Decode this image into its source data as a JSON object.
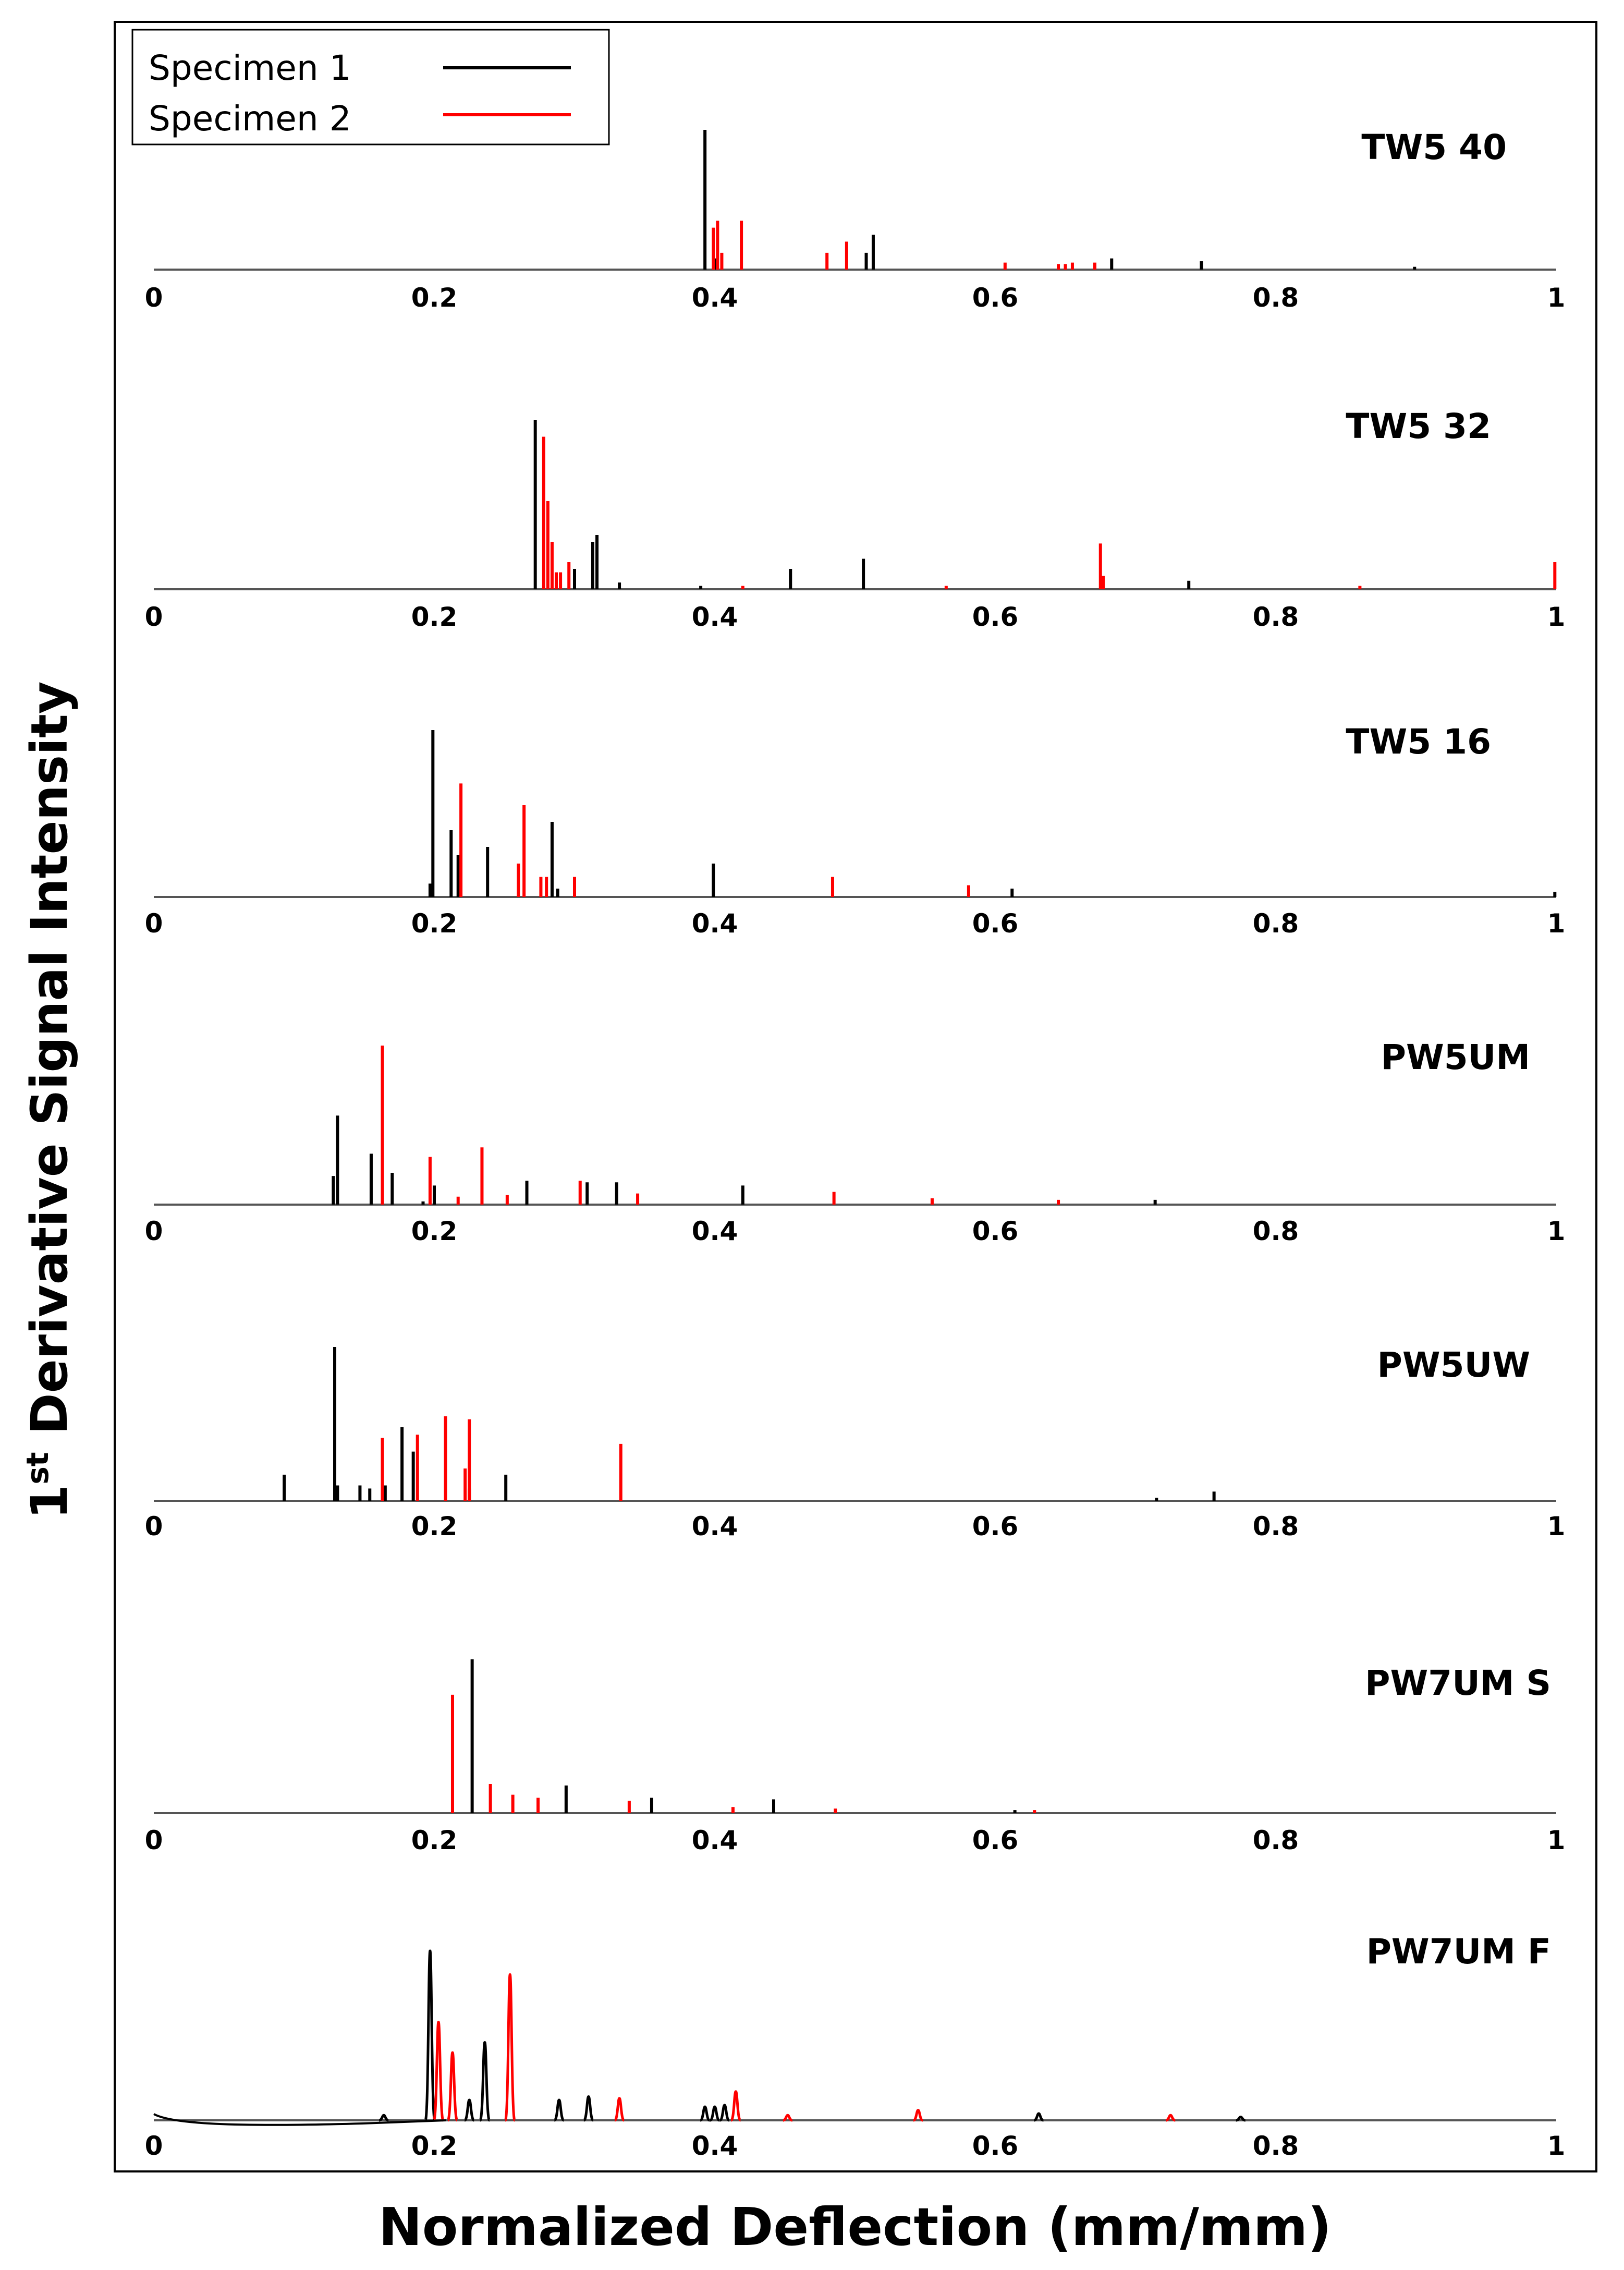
{
  "chart_data": [
    {
      "type": "line",
      "title": "TW5 40",
      "xlim": [
        0,
        1
      ],
      "xticks": [
        "0",
        "0.2",
        "0.4",
        "0.6",
        "0.8",
        "1"
      ],
      "series": [
        {
          "name": "Specimen 1",
          "color": "#000000",
          "peaks": [
            [
              0.393,
              1.0
            ],
            [
              0.4,
              0.08
            ],
            [
              0.508,
              0.12
            ],
            [
              0.513,
              0.25
            ],
            [
              0.683,
              0.08
            ],
            [
              0.747,
              0.06
            ],
            [
              0.899,
              0.02
            ]
          ]
        },
        {
          "name": "Specimen 2",
          "color": "#ff0000",
          "peaks": [
            [
              0.399,
              0.3
            ],
            [
              0.402,
              0.35
            ],
            [
              0.405,
              0.12
            ],
            [
              0.419,
              0.35
            ],
            [
              0.48,
              0.12
            ],
            [
              0.494,
              0.2
            ],
            [
              0.607,
              0.05
            ],
            [
              0.645,
              0.04
            ],
            [
              0.65,
              0.04
            ],
            [
              0.655,
              0.05
            ],
            [
              0.671,
              0.05
            ]
          ]
        }
      ]
    },
    {
      "type": "line",
      "title": "TW5 32",
      "xlim": [
        0,
        1
      ],
      "xticks": [
        "0",
        "0.2",
        "0.4",
        "0.6",
        "0.8",
        "1"
      ],
      "series": [
        {
          "name": "Specimen 1",
          "color": "#000000",
          "peaks": [
            [
              0.272,
              1.0
            ],
            [
              0.3,
              0.12
            ],
            [
              0.313,
              0.28
            ],
            [
              0.316,
              0.32
            ],
            [
              0.332,
              0.04
            ],
            [
              0.39,
              0.02
            ],
            [
              0.454,
              0.12
            ],
            [
              0.506,
              0.18
            ],
            [
              0.738,
              0.05
            ]
          ]
        },
        {
          "name": "Specimen 2",
          "color": "#ff0000",
          "peaks": [
            [
              0.278,
              0.9
            ],
            [
              0.281,
              0.52
            ],
            [
              0.284,
              0.28
            ],
            [
              0.287,
              0.1
            ],
            [
              0.29,
              0.1
            ],
            [
              0.296,
              0.16
            ],
            [
              0.42,
              0.02
            ],
            [
              0.565,
              0.02
            ],
            [
              0.675,
              0.27
            ],
            [
              0.677,
              0.08
            ],
            [
              0.86,
              0.02
            ],
            [
              0.999,
              0.16
            ]
          ]
        }
      ]
    },
    {
      "type": "line",
      "title": "TW5 16",
      "xlim": [
        0,
        1
      ],
      "xticks": [
        "0",
        "0.2",
        "0.4",
        "0.6",
        "0.8",
        "1"
      ],
      "series": [
        {
          "name": "Specimen 1",
          "color": "#000000",
          "peaks": [
            [
              0.197,
              0.08
            ],
            [
              0.199,
              1.0
            ],
            [
              0.212,
              0.4
            ],
            [
              0.217,
              0.25
            ],
            [
              0.238,
              0.3
            ],
            [
              0.284,
              0.45
            ],
            [
              0.288,
              0.05
            ],
            [
              0.399,
              0.2
            ],
            [
              0.612,
              0.05
            ],
            [
              0.999,
              0.03
            ]
          ]
        },
        {
          "name": "Specimen 2",
          "color": "#ff0000",
          "peaks": [
            [
              0.219,
              0.68
            ],
            [
              0.26,
              0.2
            ],
            [
              0.264,
              0.55
            ],
            [
              0.276,
              0.12
            ],
            [
              0.28,
              0.12
            ],
            [
              0.3,
              0.12
            ],
            [
              0.484,
              0.12
            ],
            [
              0.581,
              0.07
            ]
          ]
        }
      ]
    },
    {
      "type": "line",
      "title": "PW5UM",
      "xlim": [
        0,
        1
      ],
      "xticks": [
        "0",
        "0.2",
        "0.4",
        "0.6",
        "0.8",
        "1"
      ],
      "series": [
        {
          "name": "Specimen 1",
          "color": "#000000",
          "peaks": [
            [
              0.128,
              0.18
            ],
            [
              0.131,
              0.56
            ],
            [
              0.155,
              0.32
            ],
            [
              0.17,
              0.2
            ],
            [
              0.192,
              0.02
            ],
            [
              0.2,
              0.12
            ],
            [
              0.266,
              0.15
            ],
            [
              0.309,
              0.14
            ],
            [
              0.33,
              0.14
            ],
            [
              0.42,
              0.12
            ],
            [
              0.714,
              0.03
            ]
          ]
        },
        {
          "name": "Specimen 2",
          "color": "#ff0000",
          "peaks": [
            [
              0.163,
              1.0
            ],
            [
              0.197,
              0.3
            ],
            [
              0.217,
              0.05
            ],
            [
              0.234,
              0.36
            ],
            [
              0.252,
              0.06
            ],
            [
              0.304,
              0.15
            ],
            [
              0.345,
              0.07
            ],
            [
              0.485,
              0.08
            ],
            [
              0.555,
              0.04
            ],
            [
              0.645,
              0.03
            ]
          ]
        }
      ]
    },
    {
      "type": "line",
      "title": "PW5UW",
      "xlim": [
        0,
        1
      ],
      "xticks": [
        "0",
        "0.2",
        "0.4",
        "0.6",
        "0.8",
        "1"
      ],
      "series": [
        {
          "name": "Specimen 1",
          "color": "#000000",
          "peaks": [
            [
              0.093,
              0.17
            ],
            [
              0.129,
              1.0
            ],
            [
              0.131,
              0.1
            ],
            [
              0.147,
              0.1
            ],
            [
              0.154,
              0.08
            ],
            [
              0.165,
              0.1
            ],
            [
              0.177,
              0.48
            ],
            [
              0.185,
              0.32
            ],
            [
              0.225,
              0.08
            ],
            [
              0.251,
              0.17
            ],
            [
              0.715,
              0.02
            ],
            [
              0.756,
              0.06
            ]
          ]
        },
        {
          "name": "Specimen 2",
          "color": "#ff0000",
          "peaks": [
            [
              0.163,
              0.41
            ],
            [
              0.188,
              0.43
            ],
            [
              0.208,
              0.55
            ],
            [
              0.222,
              0.21
            ],
            [
              0.225,
              0.53
            ],
            [
              0.333,
              0.37
            ]
          ]
        }
      ]
    },
    {
      "type": "line",
      "title": "PW7UM S",
      "xlim": [
        0,
        1
      ],
      "xticks": [
        "0",
        "0.2",
        "0.4",
        "0.6",
        "0.8",
        "1"
      ],
      "series": [
        {
          "name": "Specimen 1",
          "color": "#000000",
          "peaks": [
            [
              0.227,
              1.0
            ],
            [
              0.294,
              0.18
            ],
            [
              0.355,
              0.1
            ],
            [
              0.442,
              0.09
            ],
            [
              0.614,
              0.02
            ]
          ]
        },
        {
          "name": "Specimen 2",
          "color": "#ff0000",
          "peaks": [
            [
              0.213,
              0.77
            ],
            [
              0.24,
              0.19
            ],
            [
              0.256,
              0.12
            ],
            [
              0.274,
              0.1
            ],
            [
              0.339,
              0.08
            ],
            [
              0.413,
              0.04
            ],
            [
              0.486,
              0.03
            ],
            [
              0.628,
              0.02
            ]
          ]
        }
      ]
    },
    {
      "type": "line",
      "title": "PW7UM F",
      "xlim": [
        0,
        1
      ],
      "xticks": [
        "0",
        "0.2",
        "0.4",
        "0.6",
        "0.8",
        "1"
      ],
      "series": [
        {
          "name": "Specimen 1",
          "color": "#000000",
          "peaks": [
            [
              0.164,
              0.03
            ],
            [
              0.197,
              1.0
            ],
            [
              0.225,
              0.12
            ],
            [
              0.236,
              0.46
            ],
            [
              0.289,
              0.12
            ],
            [
              0.31,
              0.14
            ],
            [
              0.393,
              0.08
            ],
            [
              0.4,
              0.08
            ],
            [
              0.407,
              0.09
            ],
            [
              0.631,
              0.04
            ],
            [
              0.775,
              0.02
            ]
          ]
        },
        {
          "name": "Specimen 2",
          "color": "#ff0000",
          "peaks": [
            [
              0.203,
              0.58
            ],
            [
              0.213,
              0.4
            ],
            [
              0.254,
              0.86
            ],
            [
              0.332,
              0.13
            ],
            [
              0.415,
              0.17
            ],
            [
              0.452,
              0.03
            ],
            [
              0.545,
              0.06
            ],
            [
              0.725,
              0.03
            ]
          ]
        }
      ]
    }
  ],
  "legend": {
    "entries": [
      {
        "label": "Specimen 1",
        "color": "#000000"
      },
      {
        "label": "Specimen 2",
        "color": "#ff0000"
      }
    ],
    "placement": "top-left"
  },
  "xlabel": "Normalized Deflection (mm/mm)",
  "ylabel": {
    "prefix": "1",
    "superscript": "st",
    "suffix": " Derivative Signal Intensity"
  }
}
